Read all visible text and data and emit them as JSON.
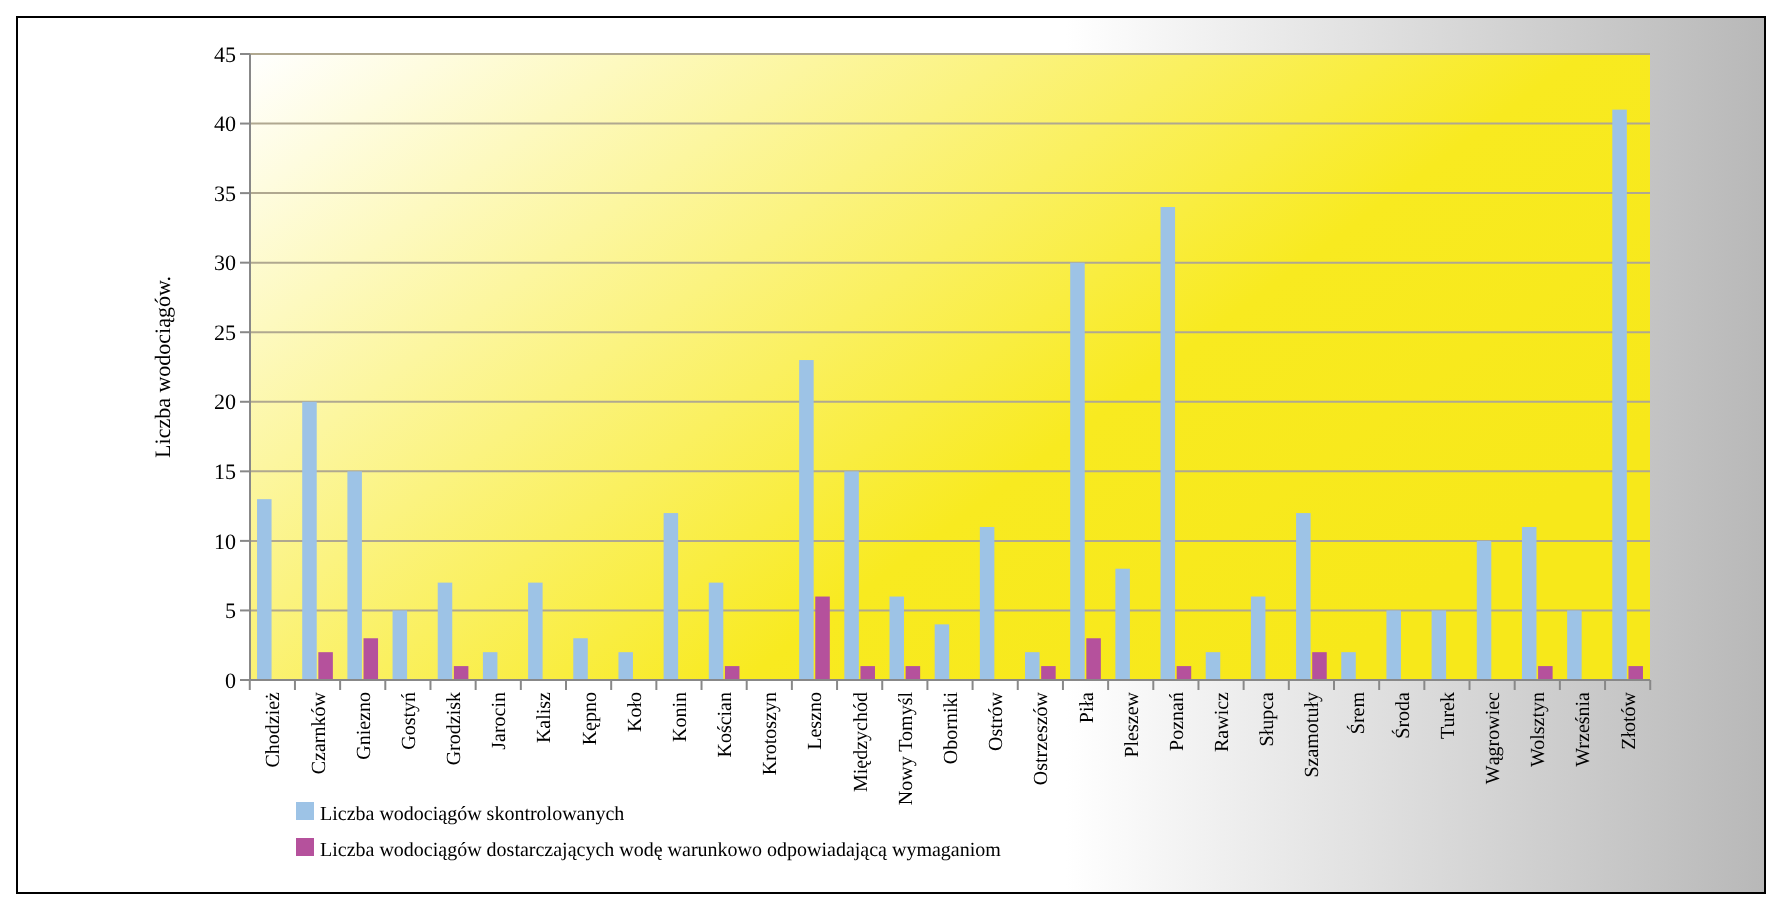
{
  "chart_data": {
    "type": "bar",
    "ylabel": "Liczba wodociągów.",
    "categories": [
      "Chodzież",
      "Czarnków",
      "Gniezno",
      "Gostyń",
      "Grodzisk",
      "Jarocin",
      "Kalisz",
      "Kępno",
      "Koło",
      "Konin",
      "Kościan",
      "Krotoszyn",
      "Leszno",
      "Międzychód",
      "Nowy Tomyśl",
      "Oborniki",
      "Ostrów",
      "Ostrzeszów",
      "Piła",
      "Pleszew",
      "Poznań",
      "Rawicz",
      "Słupca",
      "Szamotuły",
      "Śrem",
      "Środa",
      "Turek",
      "Wągrowiec",
      "Wolsztyn",
      "Września",
      "Złotów"
    ],
    "series": [
      {
        "name": "Liczba wodociągów skontrolowanych",
        "color": "#9dc3e6",
        "values": [
          13,
          20,
          15,
          5,
          7,
          2,
          7,
          3,
          2,
          12,
          7,
          0,
          23,
          15,
          6,
          4,
          11,
          2,
          30,
          8,
          34,
          2,
          6,
          12,
          2,
          5,
          5,
          10,
          11,
          5,
          41
        ]
      },
      {
        "name": "Liczba wodociągów dostarczających wodę warunkowo odpowiadającą wymaganiom",
        "color": "#b5519c",
        "values": [
          0,
          2,
          3,
          0,
          1,
          0,
          0,
          0,
          0,
          0,
          1,
          0,
          6,
          1,
          1,
          0,
          0,
          1,
          3,
          0,
          1,
          0,
          0,
          2,
          0,
          0,
          0,
          0,
          1,
          0,
          1
        ]
      }
    ],
    "ylim": [
      0,
      45
    ],
    "yticks": [
      0,
      5,
      10,
      15,
      20,
      25,
      30,
      35,
      40,
      45
    ],
    "grid": "y",
    "legend": "bottom left"
  }
}
